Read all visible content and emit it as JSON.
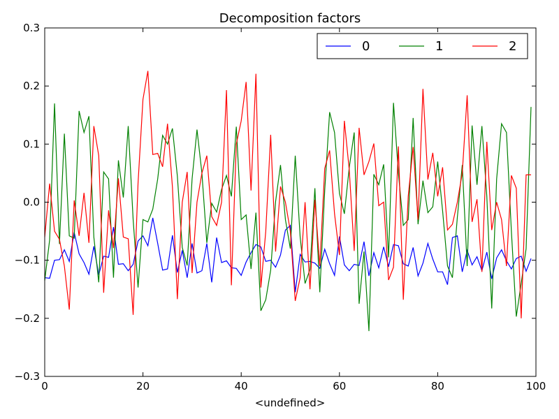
{
  "chart_data": {
    "type": "line",
    "title": "Decomposition factors",
    "xlabel": "<undefined>",
    "ylabel": "",
    "xlim": [
      0,
      100
    ],
    "ylim": [
      -0.3,
      0.3
    ],
    "xticks": [
      0,
      20,
      40,
      60,
      80,
      100
    ],
    "yticks": [
      -0.3,
      -0.2,
      -0.1,
      0.0,
      0.1,
      0.2,
      0.3
    ],
    "xtick_labels": [
      "0",
      "20",
      "40",
      "60",
      "80",
      "100"
    ],
    "ytick_labels": [
      "−0.3",
      "−0.2",
      "−0.1",
      "0.0",
      "0.1",
      "0.2",
      "0.3"
    ],
    "grid": false,
    "legend": {
      "placement": "top-right",
      "columns": 3
    },
    "series": [
      {
        "name": "0",
        "color": "#0000ff",
        "values": [
          -0.13,
          -0.131,
          -0.1,
          -0.099,
          -0.082,
          -0.102,
          -0.052,
          -0.089,
          -0.104,
          -0.124,
          -0.076,
          -0.125,
          -0.093,
          -0.095,
          -0.043,
          -0.107,
          -0.106,
          -0.118,
          -0.107,
          -0.067,
          -0.058,
          -0.075,
          -0.027,
          -0.071,
          -0.117,
          -0.115,
          -0.057,
          -0.121,
          -0.083,
          -0.13,
          -0.071,
          -0.122,
          -0.118,
          -0.071,
          -0.138,
          -0.061,
          -0.104,
          -0.101,
          -0.113,
          -0.114,
          -0.126,
          -0.103,
          -0.087,
          -0.073,
          -0.077,
          -0.102,
          -0.1,
          -0.112,
          -0.091,
          -0.048,
          -0.04,
          -0.155,
          -0.09,
          -0.103,
          -0.102,
          -0.105,
          -0.114,
          -0.081,
          -0.106,
          -0.126,
          -0.059,
          -0.108,
          -0.118,
          -0.107,
          -0.109,
          -0.068,
          -0.127,
          -0.087,
          -0.113,
          -0.077,
          -0.111,
          -0.073,
          -0.075,
          -0.106,
          -0.11,
          -0.078,
          -0.127,
          -0.105,
          -0.071,
          -0.098,
          -0.12,
          -0.12,
          -0.142,
          -0.061,
          -0.058,
          -0.12,
          -0.083,
          -0.108,
          -0.094,
          -0.118,
          -0.086,
          -0.132,
          -0.096,
          -0.082,
          -0.101,
          -0.115,
          -0.097,
          -0.093,
          -0.119,
          -0.097
        ]
      },
      {
        "name": "1",
        "color": "#008000",
        "values": [
          -0.135,
          -0.065,
          0.17,
          -0.072,
          0.118,
          -0.058,
          -0.062,
          0.157,
          0.12,
          0.148,
          -0.06,
          -0.138,
          0.052,
          0.04,
          -0.13,
          0.072,
          0.008,
          0.131,
          -0.03,
          -0.147,
          -0.03,
          -0.034,
          -0.012,
          0.04,
          0.115,
          0.1,
          0.127,
          0.045,
          -0.078,
          -0.109,
          0.04,
          0.125,
          0.05,
          -0.07,
          -0.002,
          -0.017,
          0.022,
          0.046,
          0.01,
          0.13,
          -0.03,
          -0.022,
          -0.115,
          -0.018,
          -0.187,
          -0.168,
          -0.117,
          0.001,
          0.064,
          -0.03,
          -0.08,
          0.08,
          -0.06,
          -0.14,
          -0.116,
          0.024,
          -0.155,
          0.02,
          0.155,
          0.12,
          0.015,
          -0.02,
          0.06,
          0.12,
          -0.175,
          -0.085,
          -0.222,
          0.048,
          0.03,
          0.065,
          -0.095,
          0.171,
          0.05,
          -0.04,
          -0.03,
          0.145,
          -0.038,
          0.037,
          -0.018,
          -0.008,
          0.07,
          -0.015,
          -0.11,
          -0.13,
          -0.026,
          0.064,
          -0.11,
          0.132,
          0.03,
          0.131,
          0.01,
          -0.183,
          0.04,
          0.135,
          0.12,
          -0.05,
          -0.197,
          -0.14,
          -0.08,
          0.164
        ]
      },
      {
        "name": "2",
        "color": "#ff0000",
        "values": [
          -0.06,
          0.032,
          -0.05,
          -0.064,
          -0.11,
          -0.185,
          0.003,
          -0.058,
          0.016,
          -0.07,
          0.131,
          0.08,
          -0.156,
          -0.014,
          -0.079,
          0.041,
          -0.06,
          -0.063,
          -0.194,
          0.033,
          0.177,
          0.226,
          0.082,
          0.084,
          0.061,
          0.135,
          0.026,
          -0.167,
          0.0,
          0.052,
          -0.122,
          0.0,
          0.05,
          0.08,
          -0.025,
          -0.04,
          0.0,
          0.193,
          -0.143,
          0.1,
          0.14,
          0.207,
          0.02,
          0.221,
          -0.147,
          -0.05,
          0.116,
          -0.085,
          0.027,
          0.0,
          -0.05,
          -0.17,
          -0.13,
          0.0,
          -0.15,
          0.004,
          -0.11,
          0.058,
          0.089,
          -0.02,
          -0.091,
          0.14,
          0.055,
          -0.084,
          0.128,
          0.047,
          0.07,
          0.101,
          -0.006,
          0.0,
          -0.134,
          -0.112,
          0.096,
          -0.168,
          0.01,
          0.095,
          -0.03,
          0.195,
          0.039,
          0.085,
          0.01,
          0.06,
          -0.048,
          -0.038,
          0.0,
          0.05,
          0.184,
          -0.034,
          0.005,
          -0.12,
          0.104,
          -0.048,
          0.0,
          -0.03,
          -0.11,
          0.046,
          0.024,
          -0.2,
          0.047,
          0.047
        ]
      }
    ]
  }
}
